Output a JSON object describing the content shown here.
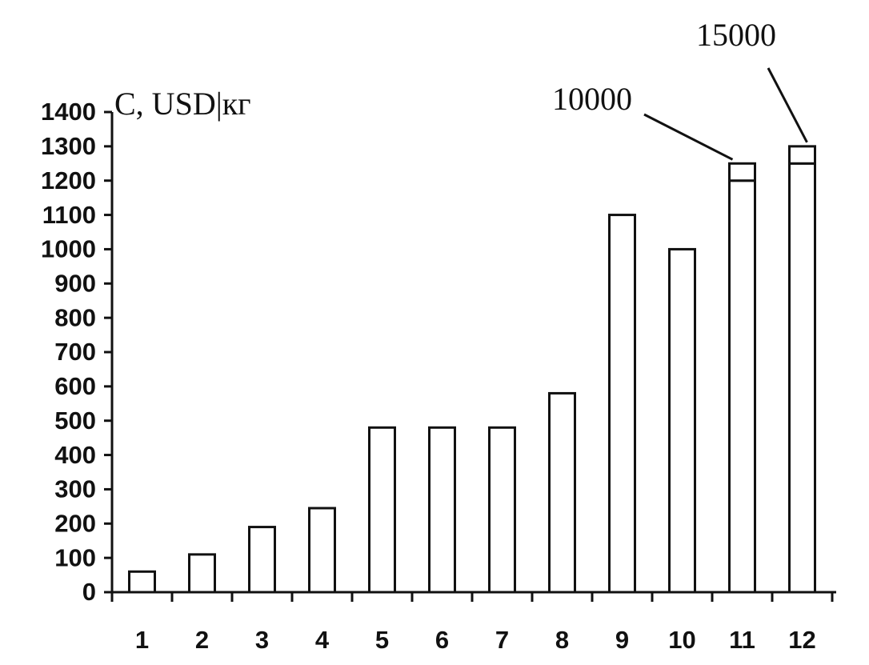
{
  "chart_data": {
    "type": "bar",
    "y_label": "C, USD|кг",
    "categories": [
      "1",
      "2",
      "3",
      "4",
      "5",
      "6",
      "7",
      "8",
      "9",
      "10",
      "11",
      "12"
    ],
    "series": [
      {
        "color": "#ffffff",
        "values": [
          60,
          110,
          190,
          245,
          480,
          480,
          480,
          580,
          1100,
          1000,
          1200,
          1250
        ]
      },
      {
        "color": "#ffffff",
        "values": [
          null,
          null,
          null,
          null,
          null,
          null,
          null,
          null,
          null,
          null,
          50,
          50
        ]
      }
    ],
    "annotations": [
      "10000",
      "15000"
    ],
    "ylim": [
      0,
      1400
    ],
    "yticks": [
      0,
      100,
      200,
      300,
      400,
      500,
      600,
      700,
      800,
      900,
      1000,
      1100,
      1200,
      1300,
      1400
    ],
    "grid": false
  }
}
